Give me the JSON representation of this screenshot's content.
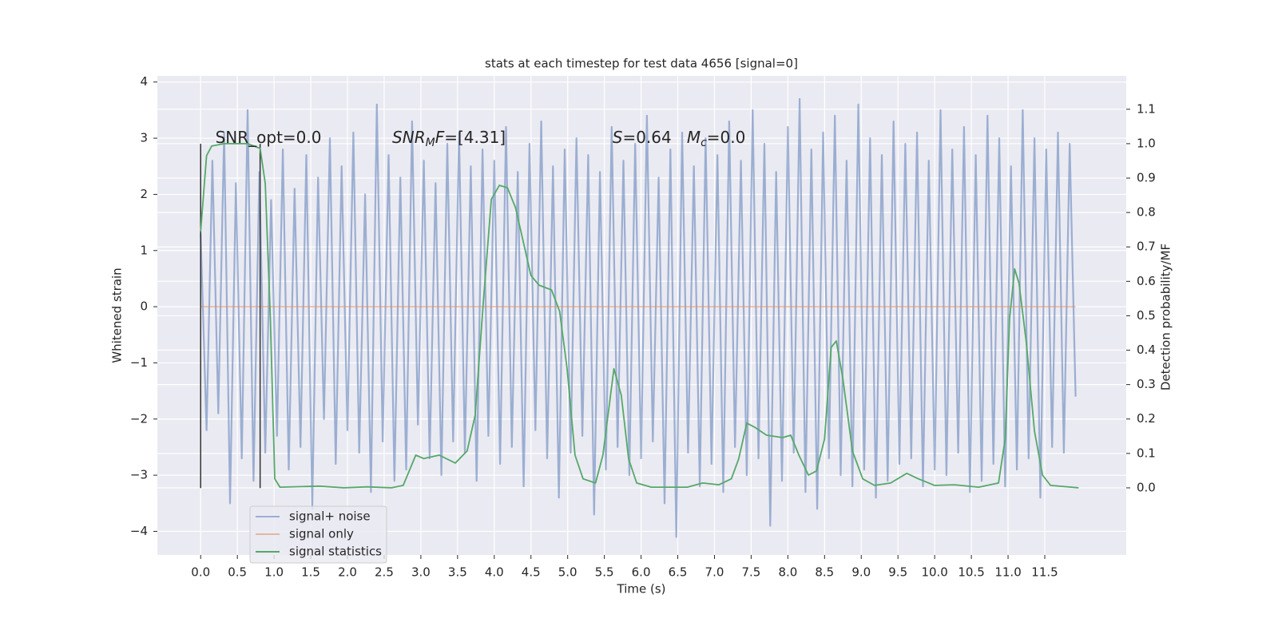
{
  "chart_data": {
    "type": "line",
    "title": "stats at each timestep for test data 4656 [signal=0]",
    "xlabel": "Time (s)",
    "ylabel": "Whitened strain",
    "y2label": "Detection probability/MF",
    "grid": true,
    "legend": "lower left",
    "background": "#eaeaf2",
    "xlim": [
      -0.59,
      12.61
    ],
    "xticks": [
      {
        "value": 0,
        "label": "0.0"
      },
      0.5,
      {
        "value": 1,
        "label": "1.0"
      },
      1.5,
      {
        "value": 2,
        "label": "2.0"
      },
      2.5,
      {
        "value": 3,
        "label": "3.0"
      },
      3.5,
      {
        "value": 4,
        "label": "4.0"
      },
      4.5,
      {
        "value": 5,
        "label": "5.0"
      },
      5.5,
      {
        "value": 6,
        "label": "6.0"
      },
      6.5,
      {
        "value": 7,
        "label": "7.0"
      },
      7.5,
      {
        "value": 8,
        "label": "8.0"
      },
      8.5,
      {
        "value": 9,
        "label": "9.0"
      },
      9.5,
      {
        "value": 10,
        "label": "10.0"
      },
      10.5,
      {
        "value": 11,
        "label": "11.0"
      },
      11.5
    ],
    "ylim": [
      -4.42,
      4.11
    ],
    "yticks": [
      {
        "value": -4,
        "label": "−4"
      },
      {
        "value": -3,
        "label": "−3"
      },
      {
        "value": -2,
        "label": "−2"
      },
      {
        "value": -1,
        "label": "−1"
      },
      0,
      1,
      2,
      3,
      4
    ],
    "y2lim": [
      -0.195,
      1.197
    ],
    "y2ticks": [
      {
        "value": 0,
        "label": "0.0"
      },
      0.1,
      0.2,
      0.3,
      0.4,
      0.5,
      0.6,
      0.7,
      0.8,
      0.9,
      {
        "value": 1,
        "label": "1.0"
      },
      1.1
    ],
    "series": [
      {
        "name": "signal+ noise",
        "color": "#4c72b0",
        "alpha": 0.5,
        "x": [
          0,
          0.08,
          0.16,
          0.24,
          0.32,
          0.4,
          0.48,
          0.56,
          0.64,
          0.72,
          0.8,
          0.88,
          0.96,
          1.04,
          1.12,
          1.2,
          1.28,
          1.36,
          1.44,
          1.52,
          1.6,
          1.68,
          1.76,
          1.84,
          1.92,
          2,
          2.08,
          2.16,
          2.24,
          2.32,
          2.4,
          2.48,
          2.56,
          2.64,
          2.72,
          2.8,
          2.88,
          2.96,
          3.04,
          3.12,
          3.2,
          3.28,
          3.36,
          3.44,
          3.52,
          3.6,
          3.68,
          3.76,
          3.84,
          3.92,
          4,
          4.08,
          4.16,
          4.24,
          4.32,
          4.4,
          4.48,
          4.56,
          4.64,
          4.72,
          4.8,
          4.88,
          4.96,
          5.04,
          5.12,
          5.2,
          5.28,
          5.36,
          5.44,
          5.52,
          5.6,
          5.68,
          5.76,
          5.84,
          5.92,
          6,
          6.08,
          6.16,
          6.24,
          6.32,
          6.4,
          6.48,
          6.56,
          6.64,
          6.72,
          6.8,
          6.88,
          6.96,
          7.04,
          7.12,
          7.2,
          7.28,
          7.36,
          7.44,
          7.52,
          7.6,
          7.68,
          7.76,
          7.84,
          7.92,
          8,
          8.08,
          8.16,
          8.24,
          8.32,
          8.4,
          8.48,
          8.56,
          8.64,
          8.72,
          8.8,
          8.88,
          8.96,
          9.04,
          9.12,
          9.2,
          9.28,
          9.36,
          9.44,
          9.52,
          9.6,
          9.68,
          9.76,
          9.84,
          9.92,
          10,
          10.08,
          10.16,
          10.24,
          10.32,
          10.4,
          10.48,
          10.56,
          10.64,
          10.72,
          10.8,
          10.88,
          10.96,
          11.04,
          11.12,
          11.2,
          11.28,
          11.36,
          11.44,
          11.52,
          11.6,
          11.68,
          11.76,
          11.84,
          11.92
        ],
        "values": [
          1.3,
          -2.2,
          2.6,
          -1.9,
          3.1,
          -3.5,
          2.2,
          -2.7,
          3.5,
          -3.1,
          2.4,
          -2.6,
          1.9,
          -2.3,
          2.8,
          -2.9,
          2.1,
          -2.5,
          2.7,
          -3.6,
          2.3,
          -2.0,
          3.0,
          -2.8,
          2.5,
          -2.2,
          3.1,
          -2.6,
          2.0,
          -3.3,
          3.6,
          -2.4,
          2.7,
          -3.1,
          2.3,
          -2.9,
          3.3,
          -2.1,
          2.6,
          -2.7,
          2.2,
          -3.0,
          2.9,
          -2.4,
          3.1,
          -2.6,
          2.5,
          -3.1,
          2.8,
          -2.3,
          2.6,
          -2.8,
          3.2,
          -2.5,
          2.4,
          -3.2,
          2.9,
          -2.2,
          3.3,
          -2.7,
          2.5,
          -3.4,
          2.8,
          -2.6,
          3.0,
          -2.3,
          2.7,
          -3.7,
          2.4,
          -2.9,
          3.2,
          -2.5,
          2.6,
          -3.0,
          2.9,
          -2.7,
          3.4,
          -2.4,
          2.3,
          -3.5,
          2.8,
          -4.1,
          3.1,
          -2.6,
          2.5,
          -3.2,
          3.0,
          -2.8,
          2.7,
          -3.3,
          3.3,
          -2.5,
          2.6,
          -3.0,
          3.5,
          -2.7,
          2.9,
          -3.9,
          2.4,
          -3.1,
          3.2,
          -2.6,
          3.7,
          -3.3,
          2.8,
          -3.6,
          3.1,
          -2.7,
          3.4,
          -3.0,
          2.6,
          -3.2,
          3.6,
          -2.9,
          3.0,
          -3.4,
          2.7,
          -3.1,
          3.3,
          -2.8,
          2.9,
          -2.7,
          3.1,
          -3.2,
          2.6,
          -2.9,
          3.5,
          -3.0,
          2.8,
          -2.6,
          3.2,
          -3.3,
          2.7,
          -3.1,
          3.4,
          -2.8,
          3.0,
          -3.2,
          2.5,
          -2.9,
          3.5,
          -2.7,
          3.0,
          -3.4,
          2.8,
          -2.5,
          3.1,
          -2.6,
          2.9,
          -1.6
        ]
      },
      {
        "name": "signal only",
        "color": "#dd8452",
        "alpha": 0.5,
        "x": [
          0,
          11.92
        ],
        "values": [
          0,
          0
        ]
      },
      {
        "name": "signal statistics",
        "color": "#55a868",
        "alpha": 1,
        "axis": "y2",
        "x": [
          0,
          0.08,
          0.15,
          0.32,
          0.64,
          0.81,
          0.88,
          0.95,
          1.01,
          1.08,
          1.62,
          1.95,
          2.27,
          2.6,
          2.76,
          2.93,
          3.04,
          3.25,
          3.47,
          3.63,
          3.74,
          3.85,
          3.96,
          4.07,
          4.18,
          4.29,
          4.4,
          4.5,
          4.61,
          4.78,
          4.89,
          4.99,
          5.1,
          5.21,
          5.38,
          5.48,
          5.63,
          5.73,
          5.83,
          5.94,
          6.14,
          6.63,
          6.84,
          7.06,
          7.23,
          7.33,
          7.44,
          7.55,
          7.71,
          7.93,
          8.04,
          8.15,
          8.28,
          8.39,
          8.5,
          8.59,
          8.66,
          8.75,
          8.88,
          9.02,
          9.18,
          9.4,
          9.62,
          9.78,
          10.0,
          10.27,
          10.6,
          10.87,
          10.96,
          11.02,
          11.09,
          11.15,
          11.25,
          11.36,
          11.47,
          11.58,
          11.96
        ],
        "values": [
          0.745,
          0.965,
          0.993,
          1.0,
          1.0,
          0.986,
          0.884,
          0.49,
          0.026,
          0.002,
          0.005,
          0.0,
          0.003,
          0.0,
          0.007,
          0.095,
          0.085,
          0.095,
          0.072,
          0.107,
          0.211,
          0.536,
          0.838,
          0.879,
          0.872,
          0.814,
          0.71,
          0.617,
          0.589,
          0.575,
          0.513,
          0.35,
          0.095,
          0.026,
          0.014,
          0.095,
          0.346,
          0.269,
          0.084,
          0.014,
          0.002,
          0.002,
          0.014,
          0.009,
          0.026,
          0.084,
          0.188,
          0.176,
          0.153,
          0.146,
          0.153,
          0.095,
          0.037,
          0.049,
          0.142,
          0.408,
          0.427,
          0.316,
          0.107,
          0.026,
          0.007,
          0.014,
          0.042,
          0.026,
          0.007,
          0.009,
          0.002,
          0.014,
          0.142,
          0.49,
          0.636,
          0.594,
          0.42,
          0.165,
          0.037,
          0.007,
          0.0
        ]
      }
    ],
    "vlines": [
      {
        "x": 0,
        "ymin": -3.23,
        "ymax": 2.9,
        "color": "#333333"
      },
      {
        "x": 0.81,
        "ymin": -3.23,
        "ymax": 2.9,
        "color": "#333333"
      }
    ],
    "annotations": [
      {
        "x": 0.2,
        "y": 3.0,
        "runs": [
          {
            "text": "SNR_opt=0.0"
          }
        ]
      },
      {
        "x": 2.61,
        "y": 3.0,
        "runs": [
          {
            "text": "SNR",
            "italic": true
          },
          {
            "text": "M",
            "italic": true,
            "sub": true
          },
          {
            "text": "F",
            "italic": true
          },
          {
            "text": "=[4.31]"
          }
        ]
      },
      {
        "x": 5.61,
        "y": 3.0,
        "runs": [
          {
            "text": "S",
            "italic": true
          },
          {
            "text": "=0.64   "
          },
          {
            "text": "M",
            "italic": true
          },
          {
            "text": "c",
            "italic": true,
            "sub": true
          },
          {
            "text": "=0.0"
          }
        ]
      }
    ]
  }
}
